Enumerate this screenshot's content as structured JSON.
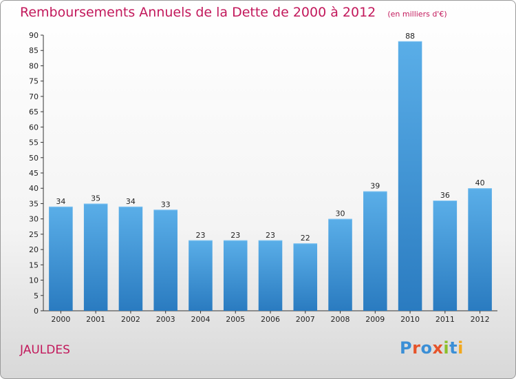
{
  "title": "Remboursements Annuels de la Dette de 2000 à 2012",
  "unit_note": "(en milliers d'€)",
  "commune": "JAULDES",
  "logo": {
    "text": "Proxiti",
    "letters": [
      {
        "ch": "P",
        "color": "#3b8fd6"
      },
      {
        "ch": "r",
        "color": "#e6542b"
      },
      {
        "ch": "o",
        "color": "#3b8fd6"
      },
      {
        "ch": "x",
        "color": "#e6542b"
      },
      {
        "ch": "i",
        "color": "#8cbf2a"
      },
      {
        "ch": "t",
        "color": "#3b8fd6"
      },
      {
        "ch": "i",
        "color": "#f2a81d"
      }
    ]
  },
  "chart_data": {
    "type": "bar",
    "categories": [
      "2000",
      "2001",
      "2002",
      "2003",
      "2004",
      "2005",
      "2006",
      "2007",
      "2008",
      "2009",
      "2010",
      "2011",
      "2012"
    ],
    "values": [
      34,
      35,
      34,
      33,
      23,
      23,
      23,
      22,
      30,
      39,
      88,
      36,
      40
    ],
    "ylim": [
      0,
      90
    ],
    "yticks": [
      0,
      5,
      10,
      15,
      20,
      25,
      30,
      35,
      40,
      45,
      50,
      55,
      60,
      65,
      70,
      75,
      80,
      85,
      90
    ],
    "grid": false,
    "bar_color": "#3d8fd6",
    "data_labels": true
  }
}
